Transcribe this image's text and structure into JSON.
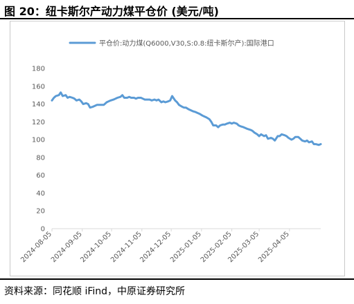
{
  "figure": {
    "title": "图 20：纽卡斯尔产动力煤平仓价 (美元/吨)",
    "source": "资料来源：同花顺 iFind，中原证券研究所"
  },
  "colors": {
    "series": "#5b9bd5",
    "axis": "#d9d9d9",
    "text": "#595959"
  },
  "chart_data": {
    "type": "line",
    "title": "",
    "xlabel": "",
    "ylabel": "",
    "ylim": [
      0,
      180
    ],
    "yticks": [
      0,
      20,
      40,
      60,
      80,
      100,
      120,
      140,
      160,
      180
    ],
    "xlim": [
      "2024-08-05",
      "2025-05-07"
    ],
    "xticks": [
      "2024-08-05",
      "2024-09-05",
      "2024-10-05",
      "2024-11-05",
      "2024-12-05",
      "2025-01-05",
      "2025-02-05",
      "2025-03-05",
      "2025-04-05"
    ],
    "grid": false,
    "legend": "top",
    "series": [
      {
        "name": "平仓价:动力煤(Q6000,V30,S:0.8:纽卡斯尔产):国际港口",
        "x": [
          "2024-08-05",
          "2024-08-07",
          "2024-08-09",
          "2024-08-12",
          "2024-08-14",
          "2024-08-16",
          "2024-08-19",
          "2024-08-21",
          "2024-08-23",
          "2024-08-26",
          "2024-08-28",
          "2024-08-30",
          "2024-09-02",
          "2024-09-04",
          "2024-09-06",
          "2024-09-09",
          "2024-09-11",
          "2024-09-13",
          "2024-09-16",
          "2024-09-18",
          "2024-09-20",
          "2024-09-23",
          "2024-09-25",
          "2024-09-27",
          "2024-09-30",
          "2024-10-02",
          "2024-10-04",
          "2024-10-07",
          "2024-10-09",
          "2024-10-11",
          "2024-10-14",
          "2024-10-16",
          "2024-10-18",
          "2024-10-21",
          "2024-10-23",
          "2024-10-25",
          "2024-10-28",
          "2024-10-30",
          "2024-11-01",
          "2024-11-04",
          "2024-11-06",
          "2024-11-08",
          "2024-11-11",
          "2024-11-13",
          "2024-11-15",
          "2024-11-18",
          "2024-11-20",
          "2024-11-22",
          "2024-11-25",
          "2024-11-27",
          "2024-11-29",
          "2024-12-02",
          "2024-12-04",
          "2024-12-06",
          "2024-12-09",
          "2024-12-11",
          "2024-12-13",
          "2024-12-16",
          "2024-12-18",
          "2024-12-20",
          "2024-12-23",
          "2024-12-27",
          "2024-12-30",
          "2025-01-03",
          "2025-01-06",
          "2025-01-08",
          "2025-01-10",
          "2025-01-13",
          "2025-01-15",
          "2025-01-17",
          "2025-01-20",
          "2025-01-22",
          "2025-01-24",
          "2025-01-27",
          "2025-01-29",
          "2025-01-31",
          "2025-02-03",
          "2025-02-05",
          "2025-02-07",
          "2025-02-10",
          "2025-02-12",
          "2025-02-14",
          "2025-02-17",
          "2025-02-19",
          "2025-02-21",
          "2025-02-24",
          "2025-02-26",
          "2025-02-28",
          "2025-03-03",
          "2025-03-05",
          "2025-03-07",
          "2025-03-10",
          "2025-03-12",
          "2025-03-14",
          "2025-03-17",
          "2025-03-19",
          "2025-03-21",
          "2025-03-24",
          "2025-03-26",
          "2025-03-28",
          "2025-03-31",
          "2025-04-02",
          "2025-04-04",
          "2025-04-07",
          "2025-04-09",
          "2025-04-11",
          "2025-04-14",
          "2025-04-16",
          "2025-04-18",
          "2025-04-21",
          "2025-04-23",
          "2025-04-25",
          "2025-04-28",
          "2025-04-30",
          "2025-05-02",
          "2025-05-05",
          "2025-05-07"
        ],
        "y": [
          144,
          147,
          149,
          150,
          153,
          149,
          150,
          147,
          148,
          147,
          146,
          144,
          145,
          143,
          140,
          141,
          140,
          136,
          137,
          138,
          139,
          139,
          139,
          139,
          142,
          143,
          144,
          145,
          146,
          147,
          148,
          150,
          147,
          147,
          148,
          147,
          147,
          146,
          147,
          147,
          146,
          145,
          145,
          145,
          144,
          145,
          144,
          145,
          142,
          143,
          142,
          143,
          144,
          149,
          144,
          142,
          139,
          137,
          136,
          136,
          134,
          132,
          131,
          129,
          127,
          126,
          125,
          123,
          120,
          116,
          116,
          114,
          116,
          117,
          117,
          118,
          119,
          118,
          119,
          118,
          116,
          115,
          114,
          113,
          112,
          111,
          110,
          108,
          106,
          104,
          106,
          104,
          105,
          101,
          102,
          101,
          99,
          104,
          104,
          106,
          105,
          104,
          102,
          100,
          101,
          103,
          103,
          101,
          99,
          98,
          99,
          97,
          98,
          95,
          95,
          94,
          95
        ]
      }
    ]
  }
}
